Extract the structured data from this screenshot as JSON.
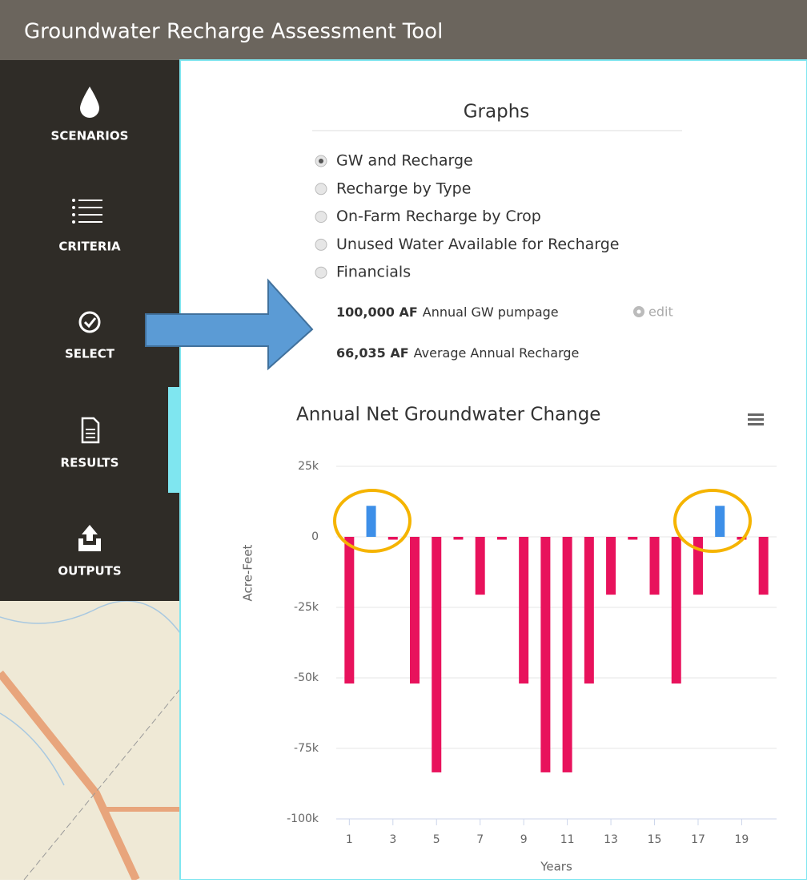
{
  "header": {
    "title": "Groundwater Recharge Assessment Tool"
  },
  "nav": [
    "SCENARIOS",
    "CRITERIA",
    "SELECT",
    "RESULTS",
    "OUTPUTS"
  ],
  "graphs": {
    "heading": "Graphs",
    "options": [
      "GW and Recharge",
      "Recharge by Type",
      "On-Farm Recharge by Crop",
      "Unused Water Available for Recharge",
      "Financials"
    ],
    "selected": 0
  },
  "stats": [
    {
      "value": "100,000 AF",
      "label": "Annual GW pumpage",
      "action": "edit"
    },
    {
      "value": "66,035 AF",
      "label": "Average Annual Recharge"
    }
  ],
  "chart_data": {
    "type": "bar",
    "title": "Annual Net Groundwater Change",
    "x_label": "Years",
    "y_label": "Acre-Feet",
    "x": [
      1,
      2,
      3,
      4,
      5,
      6,
      7,
      8,
      9,
      10,
      11,
      12,
      13,
      14,
      15,
      16,
      17,
      18,
      19,
      20
    ],
    "values": [
      -52000,
      11000,
      -1000,
      -52000,
      -83500,
      -1000,
      -20500,
      -1000,
      -52000,
      -83500,
      -83500,
      -52000,
      -20500,
      -1000,
      -20500,
      -52000,
      -20500,
      11000,
      -1000,
      -20500
    ],
    "positive_color": "#3d8fe8",
    "negative_color": "#e8125c",
    "xlim": [
      0.4,
      20.6
    ],
    "xticks": [
      1,
      3,
      5,
      7,
      9,
      11,
      13,
      15,
      17,
      19
    ],
    "ylim": [
      -100000,
      25000
    ],
    "yticks": [
      {
        "value": 25000,
        "label": "25k"
      },
      {
        "value": 0,
        "label": "0"
      },
      {
        "value": -25000,
        "label": "-25k"
      },
      {
        "value": -50000,
        "label": "-50k"
      },
      {
        "value": -75000,
        "label": "-75k"
      },
      {
        "value": -100000,
        "label": "-100k"
      }
    ],
    "grid": true
  }
}
